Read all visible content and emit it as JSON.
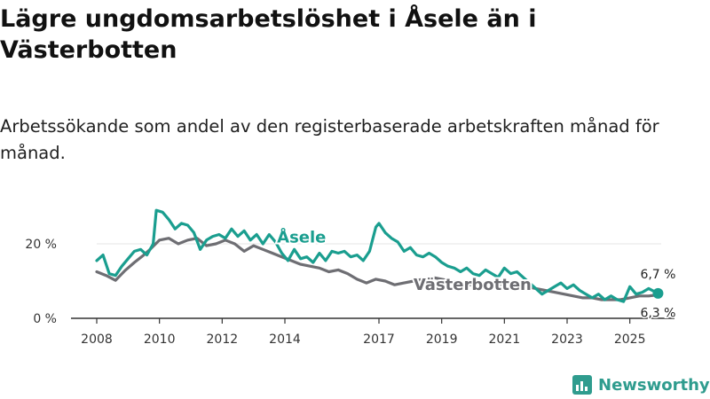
{
  "title": "Lägre ungdomsarbetslöshet i Åsele än i Västerbotten",
  "subtitle": "Arbetssökande som andel av den registerbaserade arbetskraften månad för månad.",
  "brand": {
    "name": "Newsworthy",
    "icon": "newsworthy-logo-icon"
  },
  "colors": {
    "asele": "#1a9e8f",
    "vasterbotten": "#6e6e73",
    "axis": "#333333",
    "gridline": "#e6e6e6"
  },
  "chart_data": {
    "type": "line",
    "title": "",
    "xlabel": "",
    "ylabel": "",
    "xlim": [
      2008,
      2026
    ],
    "ylim": [
      0,
      30
    ],
    "yticks": [
      {
        "value": 0,
        "label": "0 %"
      },
      {
        "value": 20,
        "label": "20 %"
      }
    ],
    "xticks": [
      {
        "value": 2008,
        "label": "2008"
      },
      {
        "value": 2010,
        "label": "2010"
      },
      {
        "value": 2012,
        "label": "2012"
      },
      {
        "value": 2014,
        "label": "2014"
      },
      {
        "value": 2017,
        "label": "2017"
      },
      {
        "value": 2019,
        "label": "2019"
      },
      {
        "value": 2021,
        "label": "2021"
      },
      {
        "value": 2023,
        "label": "2023"
      },
      {
        "value": 2025,
        "label": "2025"
      }
    ],
    "series": [
      {
        "name": "Västerbotten",
        "label": "Västerbotten",
        "end_label": "6,3 %",
        "x": [
          2008.0,
          2008.3,
          2008.6,
          2008.9,
          2009.2,
          2009.5,
          2009.7,
          2010.0,
          2010.3,
          2010.6,
          2010.9,
          2011.2,
          2011.5,
          2011.8,
          2012.1,
          2012.4,
          2012.7,
          2013.0,
          2013.3,
          2013.6,
          2013.9,
          2014.2,
          2014.5,
          2014.8,
          2015.1,
          2015.4,
          2015.7,
          2016.0,
          2016.3,
          2016.6,
          2016.9,
          2017.2,
          2017.5,
          2017.8,
          2018.1,
          2018.4,
          2018.7,
          2019.0,
          2019.3,
          2019.6,
          2019.9,
          2020.2,
          2020.5,
          2020.8,
          2021.1,
          2021.4,
          2021.7,
          2022.0,
          2022.3,
          2022.6,
          2022.9,
          2023.2,
          2023.5,
          2023.8,
          2024.1,
          2024.4,
          2024.7,
          2025.0,
          2025.3,
          2025.6,
          2025.9
        ],
        "y": [
          12.5,
          11.5,
          10.2,
          12.8,
          15.0,
          17.0,
          18.5,
          21.0,
          21.5,
          20.0,
          21.0,
          21.5,
          19.5,
          20.0,
          21.0,
          20.0,
          18.0,
          19.5,
          18.5,
          17.5,
          16.5,
          15.5,
          14.5,
          14.0,
          13.5,
          12.5,
          13.0,
          12.0,
          10.5,
          9.5,
          10.5,
          10.0,
          9.0,
          9.5,
          10.0,
          10.5,
          11.0,
          10.5,
          10.0,
          9.5,
          9.0,
          9.5,
          9.5,
          9.0,
          9.5,
          8.5,
          8.5,
          8.0,
          7.5,
          7.0,
          6.5,
          6.0,
          5.5,
          5.5,
          5.0,
          5.0,
          5.0,
          5.5,
          6.0,
          6.0,
          6.3
        ]
      },
      {
        "name": "Åsele",
        "label": "Åsele",
        "end_label": "6,7 %",
        "x": [
          2008.0,
          2008.2,
          2008.4,
          2008.6,
          2008.8,
          2009.0,
          2009.2,
          2009.4,
          2009.6,
          2009.8,
          2009.9,
          2010.1,
          2010.3,
          2010.5,
          2010.7,
          2010.9,
          2011.1,
          2011.3,
          2011.5,
          2011.7,
          2011.9,
          2012.1,
          2012.3,
          2012.5,
          2012.7,
          2012.9,
          2013.1,
          2013.3,
          2013.5,
          2013.7,
          2013.9,
          2014.1,
          2014.3,
          2014.5,
          2014.7,
          2014.9,
          2015.1,
          2015.3,
          2015.5,
          2015.7,
          2015.9,
          2016.1,
          2016.3,
          2016.5,
          2016.7,
          2016.9,
          2017.0,
          2017.2,
          2017.4,
          2017.6,
          2017.8,
          2018.0,
          2018.2,
          2018.4,
          2018.6,
          2018.8,
          2019.0,
          2019.2,
          2019.4,
          2019.6,
          2019.8,
          2020.0,
          2020.2,
          2020.4,
          2020.6,
          2020.8,
          2021.0,
          2021.2,
          2021.4,
          2021.6,
          2021.8,
          2022.0,
          2022.2,
          2022.4,
          2022.6,
          2022.8,
          2023.0,
          2023.2,
          2023.4,
          2023.6,
          2023.8,
          2024.0,
          2024.2,
          2024.4,
          2024.6,
          2024.8,
          2025.0,
          2025.2,
          2025.4,
          2025.6,
          2025.9
        ],
        "y": [
          15.5,
          17.0,
          12.0,
          11.5,
          14.0,
          16.0,
          18.0,
          18.5,
          17.0,
          20.0,
          29.0,
          28.5,
          26.5,
          24.0,
          25.5,
          25.0,
          23.0,
          18.5,
          21.0,
          22.0,
          22.5,
          21.5,
          24.0,
          22.0,
          23.5,
          21.0,
          22.5,
          20.0,
          22.5,
          20.5,
          17.5,
          15.5,
          18.5,
          16.0,
          16.5,
          15.0,
          17.5,
          15.5,
          18.0,
          17.5,
          18.0,
          16.5,
          17.0,
          15.5,
          18.0,
          24.5,
          25.5,
          23.0,
          21.5,
          20.5,
          18.0,
          19.0,
          17.0,
          16.5,
          17.5,
          16.5,
          15.0,
          14.0,
          13.5,
          12.5,
          13.5,
          12.0,
          11.5,
          13.0,
          12.0,
          11.0,
          13.5,
          12.0,
          12.5,
          11.0,
          9.5,
          8.0,
          6.5,
          7.5,
          8.5,
          9.5,
          8.0,
          9.0,
          7.5,
          6.5,
          5.5,
          6.5,
          5.0,
          6.0,
          5.0,
          4.5,
          8.5,
          6.5,
          7.0,
          8.0,
          6.7
        ]
      }
    ]
  }
}
